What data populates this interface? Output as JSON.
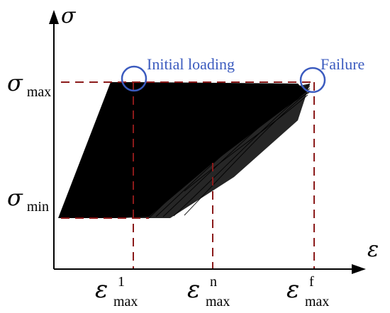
{
  "axes": {
    "y_symbol": "σ",
    "x_symbol": "ε"
  },
  "y_ticks": [
    {
      "base": "σ",
      "sub": "max"
    },
    {
      "base": "σ",
      "sub": "min"
    }
  ],
  "x_ticks": [
    {
      "base": "ε",
      "sup": "1",
      "sub": "max"
    },
    {
      "base": "ε",
      "sup": "n",
      "sub": "max"
    },
    {
      "base": "ε",
      "sup": "f",
      "sub": "max"
    }
  ],
  "annotations": {
    "initial": "Initial loading",
    "failure": "Failure"
  },
  "colors": {
    "axis": "#000000",
    "guide": "#8b1a1a",
    "callout": "#3b5bbf",
    "hysteresis": "#000000"
  }
}
